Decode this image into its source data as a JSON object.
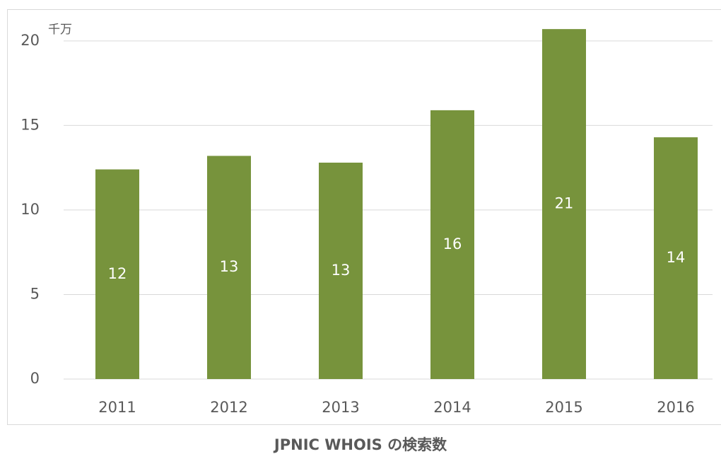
{
  "chart_data": {
    "type": "bar",
    "title": "JPNIC WHOIS の検索数",
    "y_unit": "千万",
    "categories": [
      "2011",
      "2012",
      "2013",
      "2014",
      "2015",
      "2016"
    ],
    "values": [
      12.4,
      13.2,
      12.8,
      15.9,
      20.7,
      14.3
    ],
    "value_labels": [
      "12",
      "13",
      "13",
      "16",
      "21",
      "14"
    ],
    "color": "#77933c",
    "ylim": [
      0,
      21.5
    ],
    "yticks": [
      0,
      5,
      10,
      15,
      20
    ],
    "grid": true
  }
}
